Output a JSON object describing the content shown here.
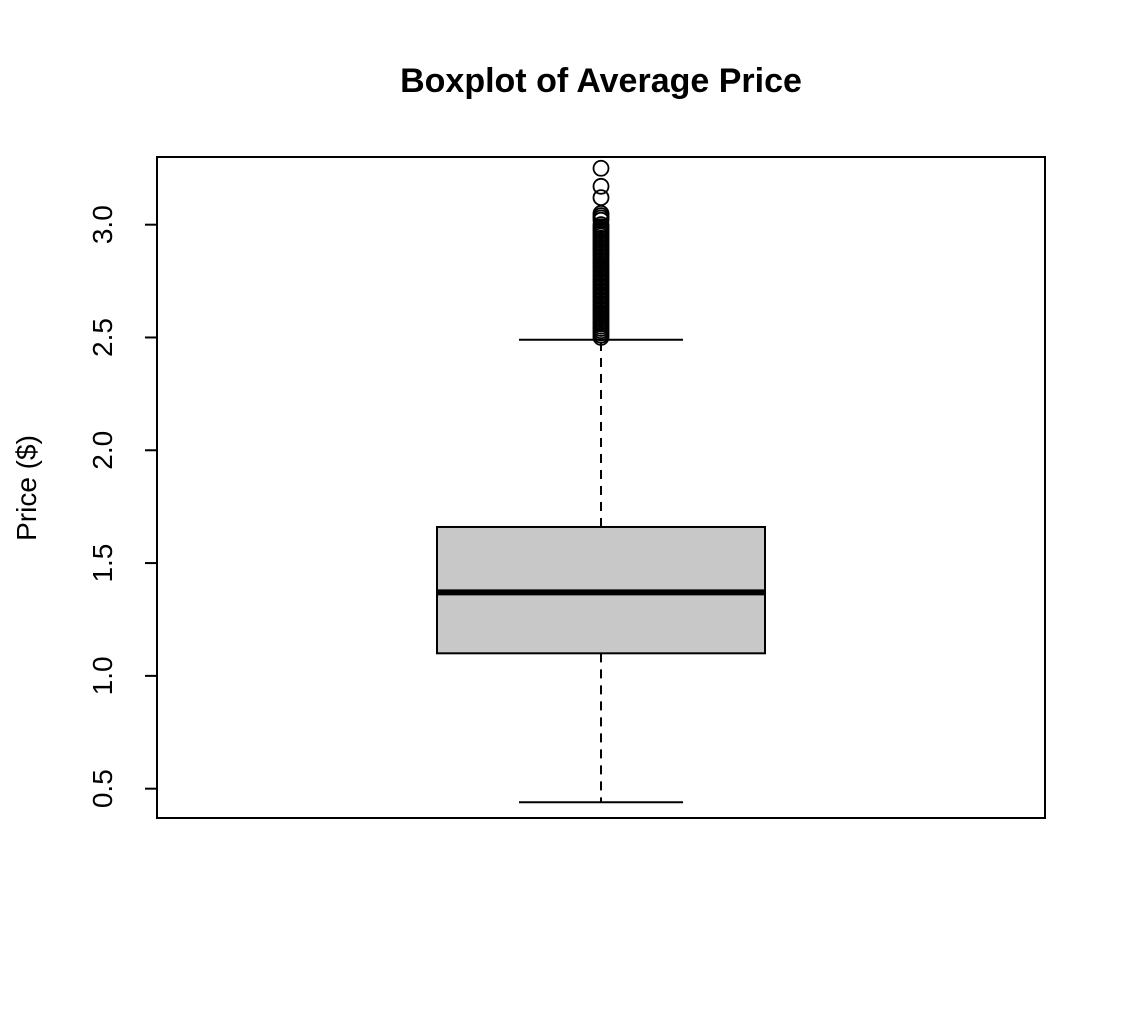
{
  "chart_data": {
    "type": "boxplot",
    "title": "Boxplot of Average Price",
    "xlabel": "",
    "ylabel": "Price ($)",
    "ylim": [
      0.37,
      3.3
    ],
    "yticks": [
      0.5,
      1.0,
      1.5,
      2.0,
      2.5,
      3.0
    ],
    "ytick_labels": [
      "0.5",
      "1.0",
      "1.5",
      "2.0",
      "2.5",
      "3.0"
    ],
    "grid": false,
    "box": {
      "whisker_low": 0.44,
      "q1": 1.1,
      "median": 1.37,
      "q3": 1.66,
      "whisker_high": 2.49,
      "fill": "#c8c8c8"
    },
    "outliers": [
      3.25,
      3.17,
      3.12,
      3.05,
      3.04,
      3.03,
      3.02,
      3.0,
      2.99,
      2.98,
      2.97,
      2.96,
      2.95,
      2.94,
      2.93,
      2.92,
      2.91,
      2.9,
      2.89,
      2.88,
      2.87,
      2.86,
      2.85,
      2.84,
      2.83,
      2.82,
      2.81,
      2.8,
      2.79,
      2.78,
      2.77,
      2.76,
      2.75,
      2.74,
      2.73,
      2.72,
      2.71,
      2.7,
      2.69,
      2.68,
      2.67,
      2.66,
      2.65,
      2.64,
      2.63,
      2.62,
      2.61,
      2.6,
      2.59,
      2.58,
      2.57,
      2.56,
      2.55,
      2.54,
      2.53,
      2.52,
      2.51,
      2.5
    ]
  }
}
